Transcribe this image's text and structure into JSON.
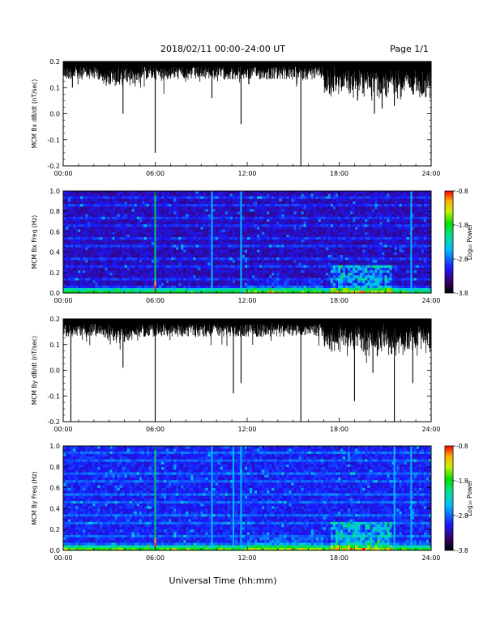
{
  "header": {
    "title": "2018/02/11  00:00–24:00 UT",
    "page": "Page 1/1"
  },
  "xlabel": "Universal Time (hh:mm)",
  "x_ticks": [
    "00:00",
    "06:00",
    "12:00",
    "18:00",
    "24:00"
  ],
  "colors": {
    "background": "#ffffff",
    "trace": "#000000",
    "spectrogram_low": "#000000",
    "spectrogram_high": "#ff0000"
  },
  "colorbar": {
    "label": "Log₁₀ Power",
    "ticks": [
      "-0.8",
      "-1.8",
      "-2.8",
      "-3.8"
    ],
    "range": [
      -3.8,
      -0.8
    ]
  },
  "chart_data": [
    {
      "type": "line",
      "panel": "bx_timeseries",
      "ylabel": "MCM Bx dB/dt (nT/sec)",
      "y_ticks": [
        "0.2",
        "0.1",
        "0.0",
        "-0.1",
        "-0.2"
      ],
      "xlim_hours": [
        0,
        24
      ],
      "ylim": [
        -0.2,
        0.2
      ],
      "baseline": 0.2,
      "spikes": [
        {
          "t": 0.6,
          "y": 0.1
        },
        {
          "t": 3.9,
          "y": 0.0
        },
        {
          "t": 6.0,
          "y": -0.15
        },
        {
          "t": 9.7,
          "y": 0.06
        },
        {
          "t": 11.6,
          "y": -0.04
        },
        {
          "t": 15.5,
          "y": -0.2
        },
        {
          "t": 19.2,
          "y": 0.05
        },
        {
          "t": 20.3,
          "y": 0.0
        },
        {
          "t": 20.8,
          "y": 0.02
        },
        {
          "t": 21.6,
          "y": 0.03
        },
        {
          "t": 23.5,
          "y": 0.08
        }
      ],
      "events_hours": [
        6.0,
        9.7,
        11.6,
        15.5
      ]
    },
    {
      "type": "heatmap",
      "panel": "bx_spectrogram",
      "ylabel": "MCM Bx Freq (Hz)",
      "y_ticks": [
        "1.0",
        "0.8",
        "0.6",
        "0.4",
        "0.2",
        "0.0"
      ],
      "xlim_hours": [
        0,
        24
      ],
      "ylim": [
        0.0,
        1.0
      ],
      "broadband_lines_hours": [
        6.0,
        9.7,
        11.6,
        22.7
      ]
    },
    {
      "type": "line",
      "panel": "by_timeseries",
      "ylabel": "MCM By dB/dt (nT/sec)",
      "y_ticks": [
        "0.2",
        "0.1",
        "0.0",
        "-0.1",
        "-0.2"
      ],
      "xlim_hours": [
        0,
        24
      ],
      "ylim": [
        -0.2,
        0.2
      ],
      "baseline": 0.2,
      "spikes": [
        {
          "t": 0.5,
          "y": -0.2
        },
        {
          "t": 3.9,
          "y": 0.01
        },
        {
          "t": 6.0,
          "y": -0.2
        },
        {
          "t": 11.1,
          "y": -0.09
        },
        {
          "t": 11.6,
          "y": -0.05
        },
        {
          "t": 15.5,
          "y": -0.2
        },
        {
          "t": 19.0,
          "y": -0.12
        },
        {
          "t": 21.6,
          "y": -0.2
        },
        {
          "t": 22.8,
          "y": -0.05
        },
        {
          "t": 20.2,
          "y": -0.01
        }
      ],
      "events_hours": [
        6.0,
        11.1,
        15.5
      ]
    },
    {
      "type": "heatmap",
      "panel": "by_spectrogram",
      "ylabel": "MCM By Freq (Hz)",
      "y_ticks": [
        "1.0",
        "0.8",
        "0.6",
        "0.4",
        "0.2",
        "0.0"
      ],
      "xlim_hours": [
        0,
        24
      ],
      "ylim": [
        0.0,
        1.0
      ],
      "broadband_lines_hours": [
        6.0,
        9.7,
        11.1,
        11.6,
        21.6,
        22.7
      ]
    }
  ]
}
